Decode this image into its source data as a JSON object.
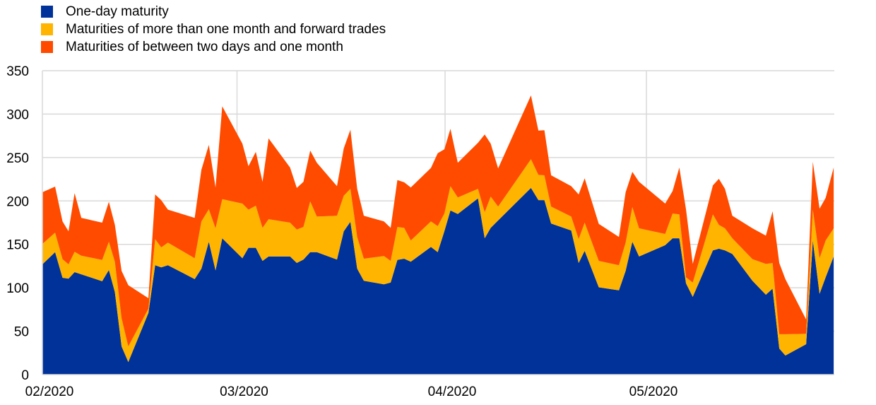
{
  "chart_data": {
    "type": "area",
    "stacked": true,
    "title": "",
    "xlabel": "",
    "ylabel": "",
    "ylim": [
      0,
      350
    ],
    "yticks": [
      0,
      50,
      100,
      150,
      200,
      250,
      300,
      350
    ],
    "x_unit": "days since 2020-02-01",
    "xlim": [
      0,
      118
    ],
    "xticks": [
      {
        "x": 0,
        "label": "02/2020"
      },
      {
        "x": 29,
        "label": "03/2020"
      },
      {
        "x": 60,
        "label": "04/2020"
      },
      {
        "x": 90,
        "label": "05/2020"
      }
    ],
    "grid": true,
    "legend_position": "top-left",
    "x": [
      0,
      1.9,
      3,
      3.9,
      4.8,
      5.8,
      8.9,
      9.9,
      10.8,
      11.8,
      12.8,
      15.8,
      16.8,
      17.7,
      18.7,
      22.7,
      23.7,
      24.8,
      25.8,
      26.8,
      29.8,
      30.7,
      31.8,
      32.8,
      33.7,
      36.9,
      37.9,
      38.9,
      39.9,
      40.9,
      43.9,
      44.9,
      45.9,
      46.9,
      47.9,
      50.9,
      51.9,
      52.9,
      53.9,
      54.9,
      57.9,
      58.9,
      59.9,
      60.8,
      61.9,
      64.9,
      65.9,
      66.8,
      67.9,
      72.8,
      73.9,
      74.8,
      75.8,
      78.8,
      79.9,
      80.8,
      82.9,
      85.9,
      86.9,
      87.9,
      88.9,
      92.8,
      93.9,
      94.9,
      95.9,
      96.9,
      99.9,
      100.8,
      101.7,
      102.8,
      105.8,
      107.8,
      108.8,
      109.8,
      110.7,
      113.8,
      114.8,
      115.8,
      116.7,
      117.9
    ],
    "series": [
      {
        "name": "One-day maturity",
        "color": "#003299",
        "values": [
          127,
          141,
          111.5,
          110.5,
          118,
          115.5,
          107.5,
          120.5,
          95,
          32.5,
          14.5,
          71,
          126,
          123.5,
          126,
          110,
          122,
          153,
          120,
          157,
          134,
          146,
          146,
          131,
          136,
          136,
          128.6,
          132.5,
          141,
          141,
          132.5,
          165,
          176,
          122,
          108,
          104,
          106,
          132,
          133.5,
          130,
          147,
          141,
          165,
          189,
          185,
          203,
          157,
          169,
          177.5,
          215,
          201,
          201,
          174,
          166,
          128.5,
          142.5,
          100.5,
          97,
          119.5,
          153,
          136,
          149,
          157,
          157,
          105,
          89.5,
          143,
          145,
          143,
          139,
          108,
          92,
          99,
          30,
          22,
          35,
          154.5,
          93,
          112,
          136
        ]
      },
      {
        "name": "Maturities of more than one month and forward trades",
        "color": "#FFB400",
        "values": [
          23.5,
          22.5,
          21.5,
          16.5,
          23.5,
          21.5,
          24.5,
          32.5,
          35,
          32.5,
          18,
          5,
          30,
          23,
          26,
          24,
          54.5,
          37.5,
          48.5,
          45,
          63,
          44,
          48.5,
          38,
          43,
          39,
          38.4,
          37.5,
          58.5,
          41,
          50.5,
          41,
          38,
          36.5,
          25.5,
          32.5,
          25,
          38,
          35.5,
          24.5,
          29.5,
          30,
          20.5,
          28,
          19,
          11,
          30,
          36,
          16,
          33,
          29,
          28.5,
          19.5,
          16,
          27.5,
          32.5,
          30.5,
          29,
          32.5,
          40,
          32.5,
          13,
          28.5,
          27.5,
          7,
          16.5,
          41.5,
          27.5,
          25.5,
          18,
          25,
          35.5,
          29.5,
          16.5,
          24.5,
          12,
          35.5,
          41,
          42.5,
          32.5
        ]
      },
      {
        "name": "Maturities of between two days and one month",
        "color": "#FF4B00",
        "values": [
          59.5,
          53,
          43.5,
          38,
          67.5,
          43.5,
          43,
          46,
          42.5,
          54.5,
          70.5,
          12,
          51.5,
          54.5,
          38,
          46.5,
          59.5,
          74,
          47,
          107,
          69,
          50,
          62,
          53,
          93,
          63.5,
          48,
          52,
          58.5,
          62,
          34,
          54.5,
          68,
          55.5,
          49.5,
          40,
          38,
          54,
          52.5,
          61,
          61.5,
          84,
          74,
          66,
          40,
          53,
          89.5,
          61,
          44,
          73.5,
          51,
          52,
          36,
          35,
          51.5,
          51,
          42.5,
          32.5,
          58,
          40.5,
          53.5,
          35,
          26,
          54,
          78,
          21.5,
          33.5,
          53,
          45.5,
          26,
          35.5,
          32.5,
          59.5,
          82,
          63.5,
          16.5,
          55,
          57,
          49,
          70
        ]
      }
    ]
  }
}
